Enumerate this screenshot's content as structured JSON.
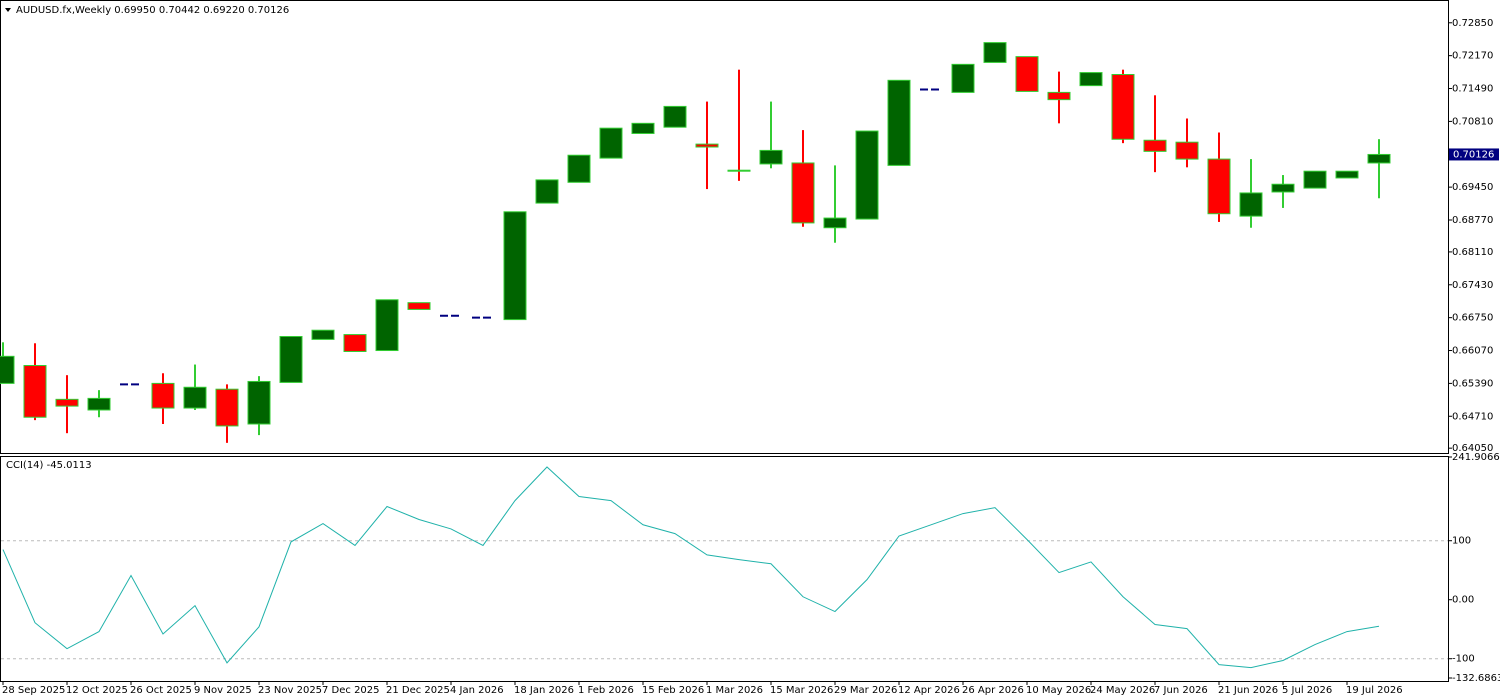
{
  "chart_data": [
    {
      "type": "candlestick",
      "title": "AUDUSD.fx,Weekly  0.69950 0.70442 0.69220 0.70126",
      "categories": [
        "28 Sep 2025",
        null,
        "12 Oct 2025",
        null,
        "26 Oct 2025",
        null,
        "9 Nov 2025",
        null,
        "23 Nov 2025",
        null,
        "7 Dec 2025",
        null,
        "21 Dec 2025",
        null,
        "4 Jan 2026",
        null,
        "18 Jan 2026",
        null,
        "1 Feb 2026",
        null,
        "15 Feb 2026",
        null,
        "1 Mar 2026",
        null,
        "15 Mar 2026",
        null,
        "29 Mar 2026",
        null,
        "12 Apr 2026",
        null,
        "26 Apr 2026",
        null,
        "10 May 2026",
        null,
        "24 May 2026",
        null,
        "7 Jun 2026",
        null,
        "21 Jun 2026",
        null,
        "5 Jul 2026",
        null,
        "19 Jul 2026",
        null
      ],
      "open": [
        0.6539,
        0.6576,
        0.6506,
        0.6484,
        0.6537,
        0.6539,
        0.6488,
        0.6527,
        0.6455,
        0.6541,
        0.663,
        0.664,
        0.6607,
        0.6706,
        0.6679,
        0.6675,
        0.6671,
        0.6912,
        0.6955,
        0.7005,
        0.7056,
        0.7069,
        0.7034,
        0.698,
        0.6993,
        0.6995,
        0.6861,
        0.6879,
        0.699,
        0.7147,
        0.7141,
        0.7203,
        0.7215,
        0.7141,
        0.7155,
        0.7178,
        0.7042,
        0.7038,
        0.7003,
        0.6885,
        0.6935,
        0.6943,
        0.6964,
        0.6995
      ],
      "high": [
        0.6624,
        0.6622,
        0.6556,
        0.6525,
        0.6537,
        0.656,
        0.6578,
        0.6537,
        0.6554,
        0.6636,
        0.6649,
        0.664,
        0.6712,
        0.6706,
        0.6679,
        0.6675,
        0.6894,
        0.696,
        0.7011,
        0.7067,
        0.7077,
        0.7112,
        0.7122,
        0.7188,
        0.7122,
        0.7063,
        0.699,
        0.7061,
        0.7166,
        0.7147,
        0.7199,
        0.7244,
        0.7215,
        0.7184,
        0.7182,
        0.7188,
        0.7135,
        0.7087,
        0.7058,
        0.7003,
        0.697,
        0.6978,
        0.6978,
        0.70442
      ],
      "low": [
        0.6539,
        0.6463,
        0.6436,
        0.6469,
        0.6537,
        0.6455,
        0.6484,
        0.6416,
        0.6432,
        0.6541,
        0.663,
        0.6605,
        0.6607,
        0.6692,
        0.6679,
        0.6675,
        0.6671,
        0.6912,
        0.6955,
        0.7005,
        0.7056,
        0.7069,
        0.6941,
        0.6958,
        0.6984,
        0.6863,
        0.683,
        0.6879,
        0.699,
        0.7147,
        0.7141,
        0.7203,
        0.7143,
        0.7077,
        0.7155,
        0.7036,
        0.6976,
        0.6986,
        0.6873,
        0.6861,
        0.6902,
        0.6943,
        0.6964,
        0.6922
      ],
      "close": [
        0.6595,
        0.6469,
        0.6492,
        0.6508,
        0.6537,
        0.6488,
        0.6531,
        0.6451,
        0.6543,
        0.6636,
        0.6649,
        0.6605,
        0.6712,
        0.6692,
        0.6679,
        0.6675,
        0.6894,
        0.696,
        0.7011,
        0.7067,
        0.7077,
        0.7112,
        0.7028,
        0.6978,
        0.7021,
        0.6871,
        0.6881,
        0.7061,
        0.7166,
        0.7147,
        0.7199,
        0.7244,
        0.7143,
        0.7126,
        0.7182,
        0.7044,
        0.7019,
        0.7003,
        0.689,
        0.6933,
        0.6951,
        0.6978,
        0.6978,
        0.70126
      ],
      "bull_color": "#006400",
      "bear_color": "#ff0000",
      "outline_color": "#32cd32",
      "doji_color": "#000080",
      "price_box_color": "#000080",
      "ylim": [
        0.6395,
        0.7328
      ],
      "yticks": [
        {
          "value": 0.7285,
          "label": "0.72850"
        },
        {
          "value": 0.7217,
          "label": "0.72170"
        },
        {
          "value": 0.7149,
          "label": "0.71490"
        },
        {
          "value": 0.7081,
          "label": "0.70810"
        },
        {
          "value": 0.6945,
          "label": "0.69450"
        },
        {
          "value": 0.6877,
          "label": "0.68770"
        },
        {
          "value": 0.6811,
          "label": "0.68110"
        },
        {
          "value": 0.6743,
          "label": "0.67430"
        },
        {
          "value": 0.6675,
          "label": "0.66750"
        },
        {
          "value": 0.6607,
          "label": "0.66070"
        },
        {
          "value": 0.6539,
          "label": "0.65390"
        },
        {
          "value": 0.6471,
          "label": "0.64710"
        },
        {
          "value": 0.6405,
          "label": "0.64050"
        }
      ]
    },
    {
      "type": "line",
      "title": "CCI(14) -45.0113",
      "values": [
        85,
        -39,
        -83,
        -54,
        41,
        -58,
        -10,
        -107,
        -46,
        98,
        129,
        92,
        158,
        136,
        120,
        92,
        168,
        225,
        175,
        168,
        127,
        112,
        76,
        68,
        61,
        5,
        -20,
        34,
        108,
        127,
        146,
        156,
        102,
        46,
        64,
        5,
        -42,
        -49,
        -110,
        -115,
        -103,
        -76,
        -54,
        -45.0113
      ],
      "color": "#20b2aa",
      "ylim": [
        -132.6863,
        241.9066
      ],
      "yticks": [
        241.9066,
        100,
        {
          "value": 0,
          "label": "0.00"
        },
        -100,
        -132.6863
      ],
      "levels": [
        100,
        -100
      ]
    }
  ]
}
